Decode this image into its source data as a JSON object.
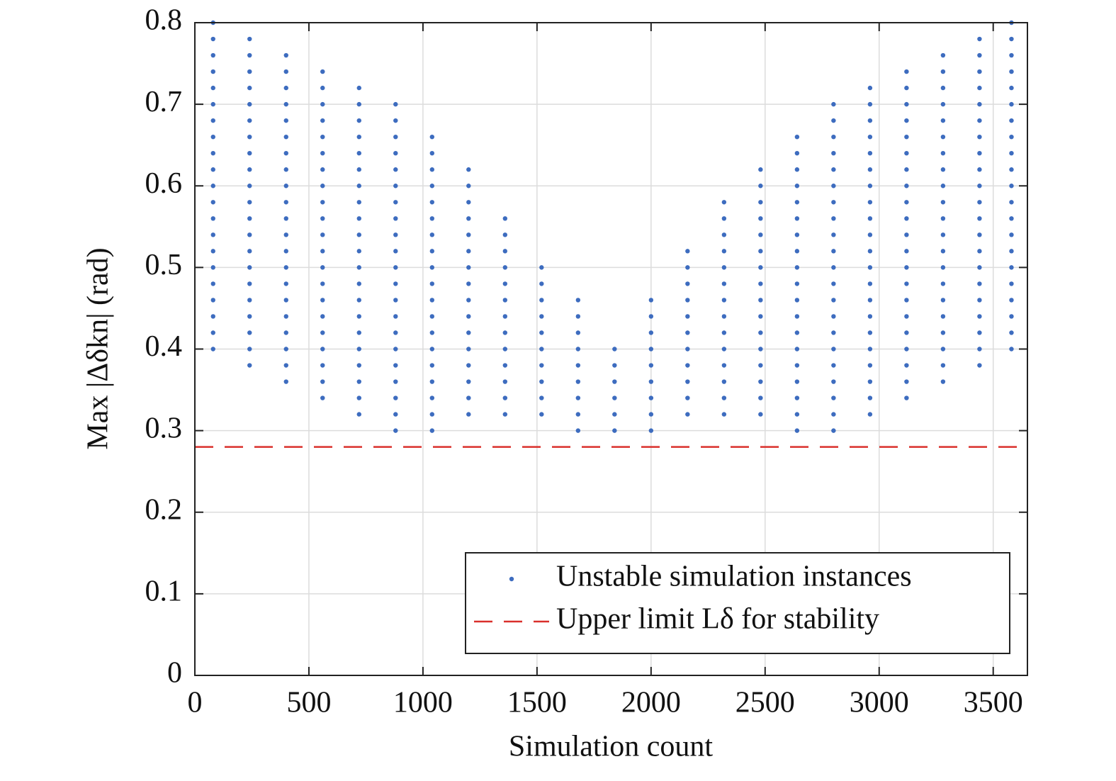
{
  "chart_data": {
    "type": "scatter",
    "xlabel": "Simulation count",
    "ylabel": "Max |Δδkn| (rad)",
    "xlim": [
      0,
      3650
    ],
    "ylim": [
      0,
      0.8
    ],
    "xticks": [
      0,
      500,
      1000,
      1500,
      2000,
      2500,
      3000,
      3500
    ],
    "yticks": [
      0,
      0.1,
      0.2,
      0.3,
      0.4,
      0.5,
      0.6,
      0.7,
      0.8
    ],
    "grid": true,
    "legend": "lower right",
    "series": [
      {
        "name": "Unstable simulation instances",
        "color": "#3d6cbf",
        "x": [
          80,
          80,
          80,
          80,
          80,
          80,
          80,
          80,
          80,
          80,
          80,
          80,
          80,
          80,
          80,
          80,
          80,
          80,
          80,
          80,
          80,
          240,
          240,
          240,
          240,
          240,
          240,
          240,
          240,
          240,
          240,
          240,
          240,
          240,
          240,
          240,
          240,
          240,
          240,
          240,
          240,
          240,
          400,
          400,
          400,
          400,
          400,
          400,
          400,
          400,
          400,
          400,
          400,
          400,
          400,
          400,
          400,
          400,
          400,
          400,
          400,
          400,
          400,
          560,
          560,
          560,
          560,
          560,
          560,
          560,
          560,
          560,
          560,
          560,
          560,
          560,
          560,
          560,
          560,
          560,
          560,
          560,
          560,
          560,
          720,
          720,
          720,
          720,
          720,
          720,
          720,
          720,
          720,
          720,
          720,
          720,
          720,
          720,
          720,
          720,
          720,
          720,
          720,
          720,
          720,
          880,
          880,
          880,
          880,
          880,
          880,
          880,
          880,
          880,
          880,
          880,
          880,
          880,
          880,
          880,
          880,
          880,
          880,
          880,
          880,
          880,
          1040,
          1040,
          1040,
          1040,
          1040,
          1040,
          1040,
          1040,
          1040,
          1040,
          1040,
          1040,
          1040,
          1040,
          1040,
          1040,
          1040,
          1040,
          1040,
          1200,
          1200,
          1200,
          1200,
          1200,
          1200,
          1200,
          1200,
          1200,
          1200,
          1200,
          1200,
          1200,
          1200,
          1200,
          1200,
          1360,
          1360,
          1360,
          1360,
          1360,
          1360,
          1360,
          1360,
          1360,
          1360,
          1360,
          1360,
          1360,
          1520,
          1520,
          1520,
          1520,
          1520,
          1520,
          1520,
          1520,
          1520,
          1520,
          1680,
          1680,
          1680,
          1680,
          1680,
          1680,
          1680,
          1680,
          1680,
          1840,
          1840,
          1840,
          1840,
          1840,
          1840,
          2000,
          2000,
          2000,
          2000,
          2000,
          2000,
          2000,
          2000,
          2000,
          2160,
          2160,
          2160,
          2160,
          2160,
          2160,
          2160,
          2160,
          2160,
          2160,
          2160,
          2320,
          2320,
          2320,
          2320,
          2320,
          2320,
          2320,
          2320,
          2320,
          2320,
          2320,
          2320,
          2320,
          2320,
          2480,
          2480,
          2480,
          2480,
          2480,
          2480,
          2480,
          2480,
          2480,
          2480,
          2480,
          2480,
          2480,
          2480,
          2480,
          2480,
          2640,
          2640,
          2640,
          2640,
          2640,
          2640,
          2640,
          2640,
          2640,
          2640,
          2640,
          2640,
          2640,
          2640,
          2640,
          2640,
          2640,
          2640,
          2640,
          2800,
          2800,
          2800,
          2800,
          2800,
          2800,
          2800,
          2800,
          2800,
          2800,
          2800,
          2800,
          2800,
          2800,
          2800,
          2800,
          2800,
          2800,
          2800,
          2800,
          2800,
          2960,
          2960,
          2960,
          2960,
          2960,
          2960,
          2960,
          2960,
          2960,
          2960,
          2960,
          2960,
          2960,
          2960,
          2960,
          2960,
          2960,
          2960,
          2960,
          2960,
          2960,
          3120,
          3120,
          3120,
          3120,
          3120,
          3120,
          3120,
          3120,
          3120,
          3120,
          3120,
          3120,
          3120,
          3120,
          3120,
          3120,
          3120,
          3120,
          3120,
          3120,
          3120,
          3280,
          3280,
          3280,
          3280,
          3280,
          3280,
          3280,
          3280,
          3280,
          3280,
          3280,
          3280,
          3280,
          3280,
          3280,
          3280,
          3280,
          3280,
          3280,
          3280,
          3280,
          3440,
          3440,
          3440,
          3440,
          3440,
          3440,
          3440,
          3440,
          3440,
          3440,
          3440,
          3440,
          3440,
          3440,
          3440,
          3440,
          3440,
          3440,
          3440,
          3440,
          3440,
          3580,
          3580,
          3580,
          3580,
          3580,
          3580,
          3580,
          3580,
          3580,
          3580,
          3580,
          3580,
          3580,
          3580,
          3580,
          3580,
          3580,
          3580,
          3580,
          3580,
          3580
        ],
        "values": [
          0.4,
          0.42,
          0.44,
          0.46,
          0.48,
          0.5,
          0.52,
          0.54,
          0.56,
          0.58,
          0.6,
          0.62,
          0.64,
          0.66,
          0.68,
          0.7,
          0.72,
          0.74,
          0.76,
          0.78,
          0.8,
          0.38,
          0.4,
          0.42,
          0.44,
          0.46,
          0.48,
          0.5,
          0.52,
          0.54,
          0.56,
          0.58,
          0.6,
          0.62,
          0.64,
          0.66,
          0.68,
          0.7,
          0.72,
          0.74,
          0.76,
          0.78,
          0.36,
          0.38,
          0.4,
          0.42,
          0.44,
          0.46,
          0.48,
          0.5,
          0.52,
          0.54,
          0.56,
          0.58,
          0.6,
          0.62,
          0.64,
          0.66,
          0.68,
          0.7,
          0.72,
          0.74,
          0.76,
          0.34,
          0.36,
          0.38,
          0.4,
          0.42,
          0.44,
          0.46,
          0.48,
          0.5,
          0.52,
          0.54,
          0.56,
          0.58,
          0.6,
          0.62,
          0.64,
          0.66,
          0.68,
          0.7,
          0.72,
          0.74,
          0.32,
          0.34,
          0.36,
          0.38,
          0.4,
          0.42,
          0.44,
          0.46,
          0.48,
          0.5,
          0.52,
          0.54,
          0.56,
          0.58,
          0.6,
          0.62,
          0.64,
          0.66,
          0.68,
          0.7,
          0.72,
          0.3,
          0.32,
          0.34,
          0.36,
          0.38,
          0.4,
          0.42,
          0.44,
          0.46,
          0.48,
          0.5,
          0.52,
          0.54,
          0.56,
          0.58,
          0.6,
          0.62,
          0.64,
          0.66,
          0.68,
          0.7,
          0.3,
          0.32,
          0.34,
          0.36,
          0.38,
          0.4,
          0.42,
          0.44,
          0.46,
          0.48,
          0.5,
          0.52,
          0.54,
          0.56,
          0.58,
          0.6,
          0.62,
          0.64,
          0.66,
          0.32,
          0.34,
          0.36,
          0.38,
          0.4,
          0.42,
          0.44,
          0.46,
          0.48,
          0.5,
          0.52,
          0.54,
          0.56,
          0.58,
          0.6,
          0.62,
          0.32,
          0.34,
          0.36,
          0.38,
          0.4,
          0.42,
          0.44,
          0.46,
          0.48,
          0.5,
          0.52,
          0.54,
          0.56,
          0.32,
          0.34,
          0.36,
          0.38,
          0.4,
          0.42,
          0.44,
          0.46,
          0.48,
          0.5,
          0.3,
          0.32,
          0.34,
          0.36,
          0.38,
          0.4,
          0.42,
          0.44,
          0.46,
          0.3,
          0.32,
          0.34,
          0.36,
          0.38,
          0.4,
          0.3,
          0.32,
          0.34,
          0.36,
          0.38,
          0.4,
          0.42,
          0.44,
          0.46,
          0.32,
          0.34,
          0.36,
          0.38,
          0.4,
          0.42,
          0.44,
          0.46,
          0.48,
          0.5,
          0.52,
          0.32,
          0.34,
          0.36,
          0.38,
          0.4,
          0.42,
          0.44,
          0.46,
          0.48,
          0.5,
          0.52,
          0.54,
          0.56,
          0.58,
          0.32,
          0.34,
          0.36,
          0.38,
          0.4,
          0.42,
          0.44,
          0.46,
          0.48,
          0.5,
          0.52,
          0.54,
          0.56,
          0.58,
          0.6,
          0.62,
          0.3,
          0.32,
          0.34,
          0.36,
          0.38,
          0.4,
          0.42,
          0.44,
          0.46,
          0.48,
          0.5,
          0.52,
          0.54,
          0.56,
          0.58,
          0.6,
          0.62,
          0.64,
          0.66,
          0.3,
          0.32,
          0.34,
          0.36,
          0.38,
          0.4,
          0.42,
          0.44,
          0.46,
          0.48,
          0.5,
          0.52,
          0.54,
          0.56,
          0.58,
          0.6,
          0.62,
          0.64,
          0.66,
          0.68,
          0.7,
          0.32,
          0.34,
          0.36,
          0.38,
          0.4,
          0.42,
          0.44,
          0.46,
          0.48,
          0.5,
          0.52,
          0.54,
          0.56,
          0.58,
          0.6,
          0.62,
          0.64,
          0.66,
          0.68,
          0.7,
          0.72,
          0.34,
          0.36,
          0.38,
          0.4,
          0.42,
          0.44,
          0.46,
          0.48,
          0.5,
          0.52,
          0.54,
          0.56,
          0.58,
          0.6,
          0.62,
          0.64,
          0.66,
          0.68,
          0.7,
          0.72,
          0.74,
          0.36,
          0.38,
          0.4,
          0.42,
          0.44,
          0.46,
          0.48,
          0.5,
          0.52,
          0.54,
          0.56,
          0.58,
          0.6,
          0.62,
          0.64,
          0.66,
          0.68,
          0.7,
          0.72,
          0.74,
          0.76,
          0.38,
          0.4,
          0.42,
          0.44,
          0.46,
          0.48,
          0.5,
          0.52,
          0.54,
          0.56,
          0.58,
          0.6,
          0.62,
          0.64,
          0.66,
          0.68,
          0.7,
          0.72,
          0.74,
          0.76,
          0.78,
          0.4,
          0.42,
          0.44,
          0.46,
          0.48,
          0.5,
          0.52,
          0.54,
          0.56,
          0.58,
          0.6,
          0.62,
          0.64,
          0.66,
          0.68,
          0.7,
          0.72,
          0.74,
          0.76,
          0.78,
          0.8
        ]
      },
      {
        "name": "Upper limit Lδ for stability",
        "color": "#d9302c",
        "type": "hline",
        "values": [
          0.28
        ]
      }
    ]
  }
}
